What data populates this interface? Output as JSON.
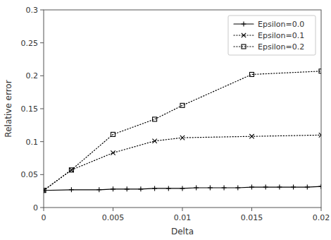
{
  "chart_data": {
    "type": "line",
    "xlabel": "Delta",
    "ylabel": "Relative error",
    "color": "#000000",
    "xlim": [
      0,
      0.02
    ],
    "ylim": [
      0,
      0.3
    ],
    "xticks": [
      0,
      0.005,
      0.01,
      0.015,
      0.02
    ],
    "yticks": [
      0,
      0.05,
      0.1,
      0.15,
      0.2,
      0.25,
      0.3
    ],
    "grid": false,
    "legend": "upper right",
    "series": [
      {
        "name": "Epsilon=0.0",
        "marker": "plus",
        "line_style": "solid",
        "x": [
          0,
          0.002,
          0.004,
          0.005,
          0.006,
          0.007,
          0.008,
          0.009,
          0.01,
          0.011,
          0.012,
          0.013,
          0.014,
          0.015,
          0.016,
          0.017,
          0.018,
          0.019,
          0.02
        ],
        "values": [
          0.026,
          0.027,
          0.027,
          0.028,
          0.028,
          0.028,
          0.029,
          0.029,
          0.029,
          0.03,
          0.03,
          0.03,
          0.03,
          0.031,
          0.031,
          0.031,
          0.031,
          0.031,
          0.032
        ]
      },
      {
        "name": "Epsilon=0.1",
        "marker": "x",
        "line_style": "dotted",
        "x": [
          0,
          0.002,
          0.005,
          0.008,
          0.01,
          0.015,
          0.02
        ],
        "values": [
          0.026,
          0.057,
          0.083,
          0.101,
          0.106,
          0.108,
          0.11
        ]
      },
      {
        "name": "Epsilon=0.2",
        "marker": "square",
        "line_style": "dotted",
        "x": [
          0,
          0.002,
          0.005,
          0.008,
          0.01,
          0.015,
          0.02
        ],
        "values": [
          0.026,
          0.057,
          0.111,
          0.134,
          0.155,
          0.202,
          0.207
        ]
      }
    ]
  }
}
